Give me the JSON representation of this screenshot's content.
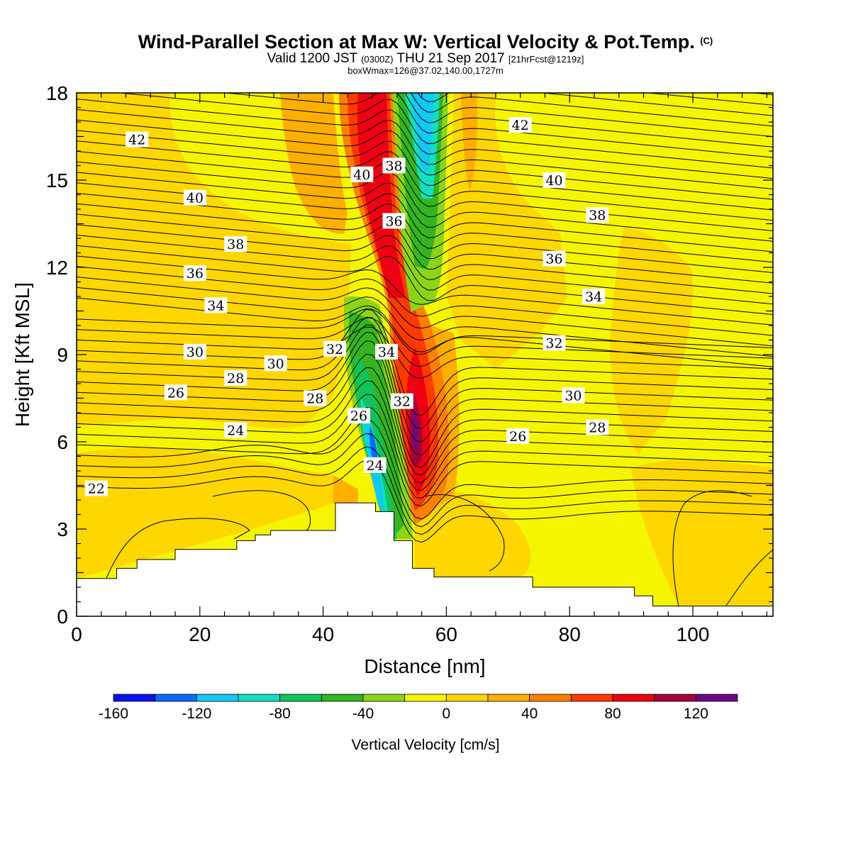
{
  "title": {
    "main": "Wind-Parallel Section at Max W: Vertical Velocity & Pot.Temp.",
    "copyright": "(C)",
    "valid_prefix": "Valid 1200 JST",
    "valid_utc": "(0300Z)",
    "valid_date": "THU 21 Sep 2017",
    "forecast": "[21hrFcst@1219z]",
    "box_wmax": "boxWmax=126@37.02,140.00,1727m"
  },
  "chart_data": {
    "type": "heatmap",
    "xlabel": "Distance [nm]",
    "ylabel": "Height [Kft MSL]",
    "xlim": [
      0,
      113
    ],
    "ylim": [
      0,
      18
    ],
    "x_ticks": [
      0,
      20,
      40,
      60,
      80,
      100
    ],
    "y_ticks": [
      0,
      3,
      6,
      9,
      12,
      15,
      18
    ],
    "colorbar": {
      "label": "Vertical Velocity [cm/s]",
      "levels": [
        -160,
        -140,
        -120,
        -100,
        -80,
        -60,
        -40,
        -20,
        0,
        20,
        40,
        60,
        80,
        100,
        120,
        140
      ],
      "tick_labels": [
        -160,
        -120,
        -80,
        -40,
        0,
        40,
        80,
        120
      ],
      "colors": [
        "#0a10f0",
        "#0a6af5",
        "#12c8f5",
        "#12e0c0",
        "#10c35a",
        "#34b420",
        "#8cd418",
        "#f5f500",
        "#ffd700",
        "#ffaf00",
        "#ff7f00",
        "#ff3a00",
        "#ee0012",
        "#a5003c",
        "#6a0a82"
      ]
    },
    "terrain_profile": [
      [
        0,
        1.3
      ],
      [
        6.5,
        1.3
      ],
      [
        6.5,
        1.65
      ],
      [
        9.8,
        1.65
      ],
      [
        9.8,
        1.95
      ],
      [
        16,
        1.95
      ],
      [
        16,
        2.3
      ],
      [
        26,
        2.3
      ],
      [
        26,
        2.6
      ],
      [
        29,
        2.6
      ],
      [
        29,
        2.8
      ],
      [
        31.5,
        2.8
      ],
      [
        31.5,
        2.95
      ],
      [
        42,
        2.95
      ],
      [
        42,
        3.9
      ],
      [
        48.5,
        3.9
      ],
      [
        48.5,
        3.6
      ],
      [
        51.5,
        3.6
      ],
      [
        51.5,
        2.6
      ],
      [
        54.5,
        2.6
      ],
      [
        54.5,
        1.65
      ],
      [
        58,
        1.65
      ],
      [
        58,
        1.35
      ],
      [
        74,
        1.35
      ],
      [
        74,
        1.0
      ],
      [
        90.5,
        1.0
      ],
      [
        90.5,
        0.7
      ],
      [
        93.5,
        0.7
      ],
      [
        93.5,
        0.35
      ],
      [
        113,
        0.35
      ]
    ],
    "theta_contour_labels": [
      {
        "value": "42",
        "x": 9.8,
        "y": 16.4
      },
      {
        "value": "42",
        "x": 72.0,
        "y": 16.9
      },
      {
        "value": "40",
        "x": 46.3,
        "y": 15.2
      },
      {
        "value": "38",
        "x": 51.5,
        "y": 15.5
      },
      {
        "value": "40",
        "x": 19.2,
        "y": 14.4
      },
      {
        "value": "40",
        "x": 77.5,
        "y": 15.0
      },
      {
        "value": "38",
        "x": 84.5,
        "y": 13.8
      },
      {
        "value": "36",
        "x": 51.5,
        "y": 13.6
      },
      {
        "value": "38",
        "x": 25.8,
        "y": 12.8
      },
      {
        "value": "36",
        "x": 77.5,
        "y": 12.3
      },
      {
        "value": "36",
        "x": 19.2,
        "y": 11.8
      },
      {
        "value": "34",
        "x": 22.6,
        "y": 10.7
      },
      {
        "value": "34",
        "x": 83.9,
        "y": 11.0
      },
      {
        "value": "32",
        "x": 41.9,
        "y": 9.2
      },
      {
        "value": "34",
        "x": 50.3,
        "y": 9.1
      },
      {
        "value": "30",
        "x": 19.2,
        "y": 9.1
      },
      {
        "value": "32",
        "x": 77.5,
        "y": 9.4
      },
      {
        "value": "30",
        "x": 32.3,
        "y": 8.7
      },
      {
        "value": "28",
        "x": 25.8,
        "y": 8.2
      },
      {
        "value": "32",
        "x": 52.8,
        "y": 7.4
      },
      {
        "value": "26",
        "x": 16.1,
        "y": 7.7
      },
      {
        "value": "28",
        "x": 38.7,
        "y": 7.5
      },
      {
        "value": "30",
        "x": 80.6,
        "y": 7.6
      },
      {
        "value": "26",
        "x": 45.8,
        "y": 6.9
      },
      {
        "value": "28",
        "x": 84.5,
        "y": 6.5
      },
      {
        "value": "24",
        "x": 25.8,
        "y": 6.4
      },
      {
        "value": "26",
        "x": 71.6,
        "y": 6.2
      },
      {
        "value": "24",
        "x": 48.4,
        "y": 5.2
      },
      {
        "value": "22",
        "x": 3.2,
        "y": 4.4
      }
    ]
  }
}
